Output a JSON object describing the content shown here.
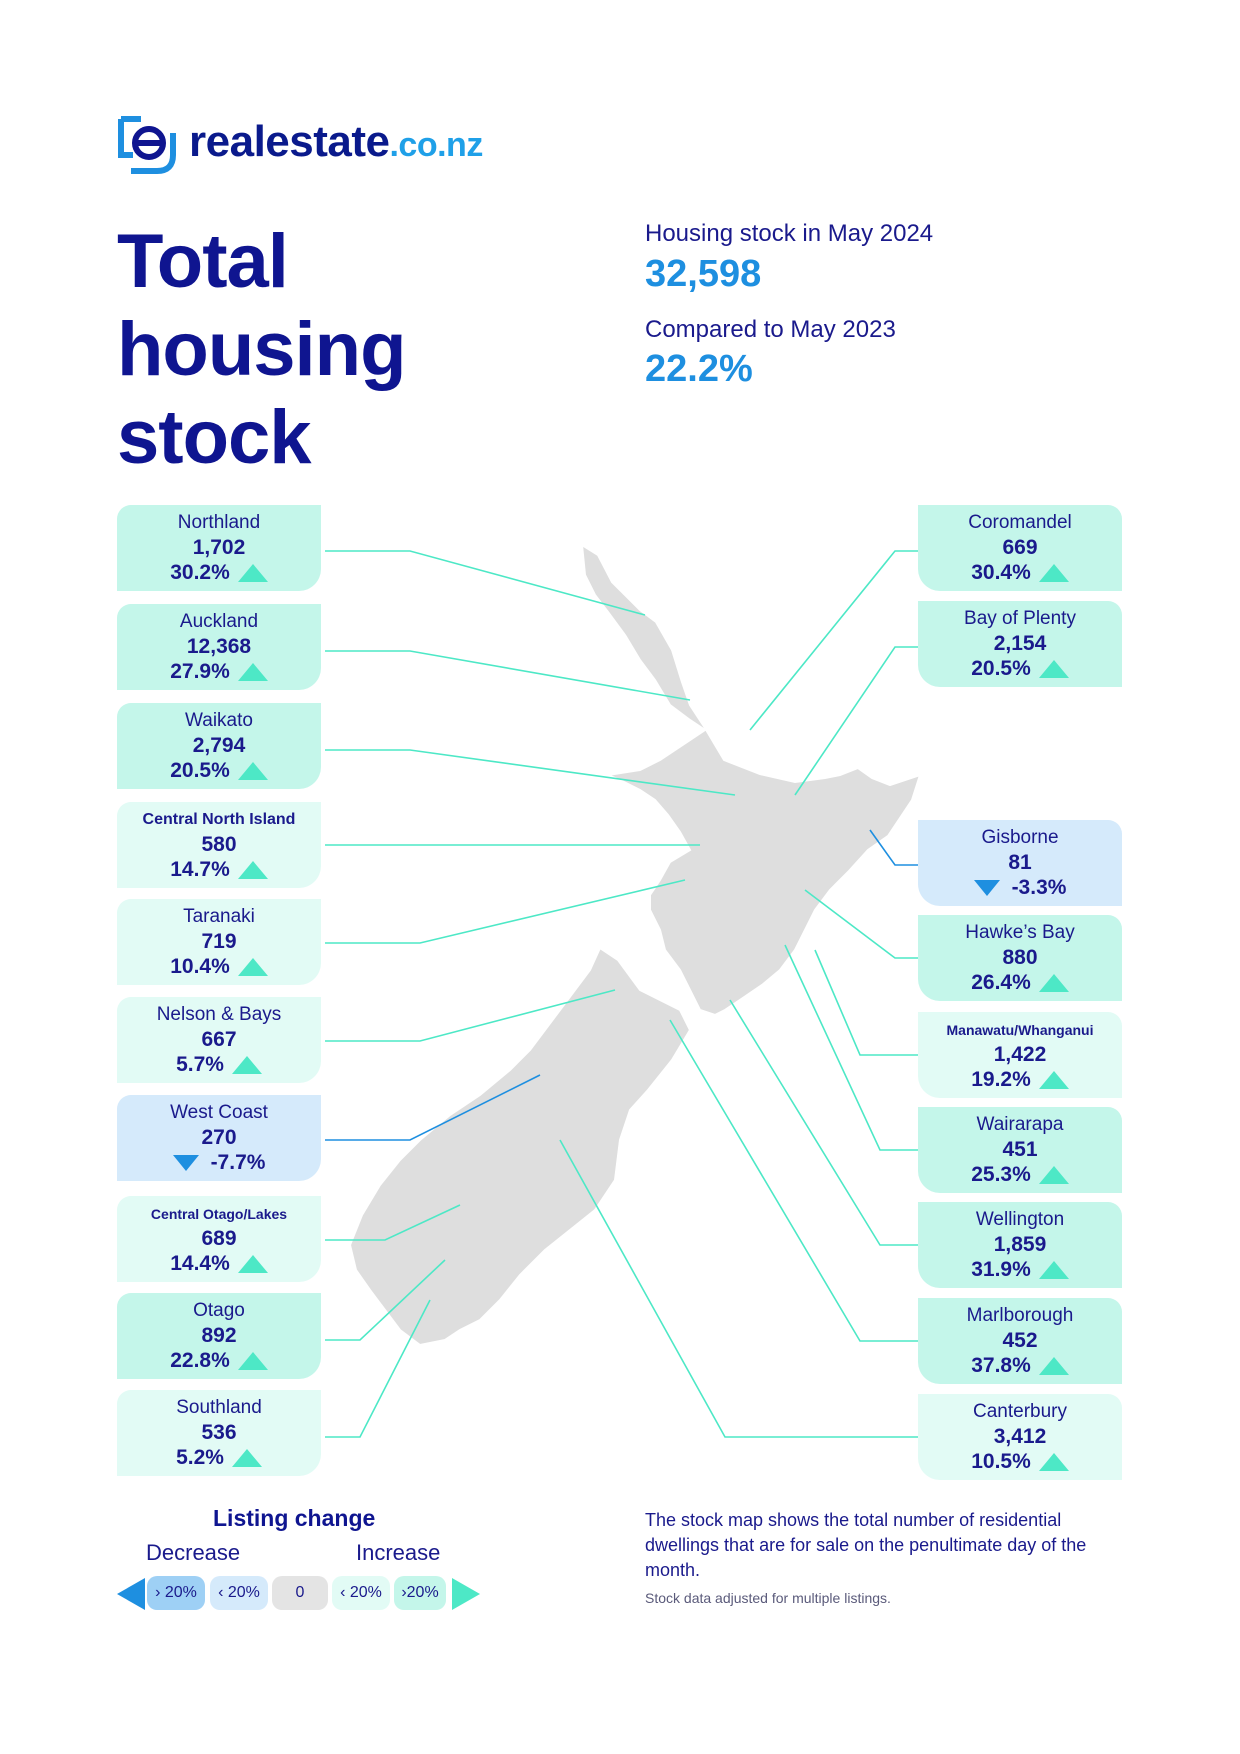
{
  "brand": {
    "name_main": "realestate",
    "name_tld": ".co.nz"
  },
  "title": "Total housing stock",
  "stats": {
    "stock_label": "Housing stock in May 2024",
    "stock_value": "32,598",
    "compare_label": "Compared to May 2023",
    "compare_value": "22.2%"
  },
  "regions_left": [
    {
      "name": "Northland",
      "count": "1,702",
      "change": "30.2%",
      "direction": "up",
      "band": "up20"
    },
    {
      "name": "Auckland",
      "count": "12,368",
      "change": "27.9%",
      "direction": "up",
      "band": "up20"
    },
    {
      "name": "Waikato",
      "count": "2,794",
      "change": "20.5%",
      "direction": "up",
      "band": "up20"
    },
    {
      "name": "Central North Island",
      "count": "580",
      "change": "14.7%",
      "direction": "up",
      "band": "up"
    },
    {
      "name": "Taranaki",
      "count": "719",
      "change": "10.4%",
      "direction": "up",
      "band": "up"
    },
    {
      "name": "Nelson & Bays",
      "count": "667",
      "change": "5.7%",
      "direction": "up",
      "band": "up"
    },
    {
      "name": "West Coast",
      "count": "270",
      "change": "-7.7%",
      "direction": "down",
      "band": "down"
    },
    {
      "name": "Central Otago/Lakes",
      "count": "689",
      "change": "14.4%",
      "direction": "up",
      "band": "up"
    },
    {
      "name": "Otago",
      "count": "892",
      "change": "22.8%",
      "direction": "up",
      "band": "up20"
    },
    {
      "name": "Southland",
      "count": "536",
      "change": "5.2%",
      "direction": "up",
      "band": "up"
    }
  ],
  "regions_right": [
    {
      "name": "Coromandel",
      "count": "669",
      "change": "30.4%",
      "direction": "up",
      "band": "up20"
    },
    {
      "name": "Bay of Plenty",
      "count": "2,154",
      "change": "20.5%",
      "direction": "up",
      "band": "up20"
    },
    {
      "name": "Gisborne",
      "count": "81",
      "change": "-3.3%",
      "direction": "down",
      "band": "down"
    },
    {
      "name": "Hawke’s Bay",
      "count": "880",
      "change": "26.4%",
      "direction": "up",
      "band": "up20"
    },
    {
      "name": "Manawatu/Whanganui",
      "count": "1,422",
      "change": "19.2%",
      "direction": "up",
      "band": "up"
    },
    {
      "name": "Wairarapa",
      "count": "451",
      "change": "25.3%",
      "direction": "up",
      "band": "up20"
    },
    {
      "name": "Wellington",
      "count": "1,859",
      "change": "31.9%",
      "direction": "up",
      "band": "up20"
    },
    {
      "name": "Marlborough",
      "count": "452",
      "change": "37.8%",
      "direction": "up",
      "band": "up20"
    },
    {
      "name": "Canterbury",
      "count": "3,412",
      "change": "10.5%",
      "direction": "up",
      "band": "up"
    }
  ],
  "legend": {
    "title": "Listing change",
    "decrease": "Decrease",
    "increase": "Increase",
    "pills": [
      "› 20%",
      "‹ 20%",
      "0",
      "‹ 20%",
      "›20%"
    ]
  },
  "note": "The stock map shows the total number of residential dwellings that are for sale on the penultimate day of the month.",
  "footnote": "Stock data adjusted for multiple listings.",
  "colors": {
    "navy": "#0f1590",
    "blue": "#1e8fe0",
    "teal": "#4de8c6",
    "box_up20": "#c4f6ea",
    "box_up": "#e2fbf5",
    "box_down": "#d5eafb"
  }
}
